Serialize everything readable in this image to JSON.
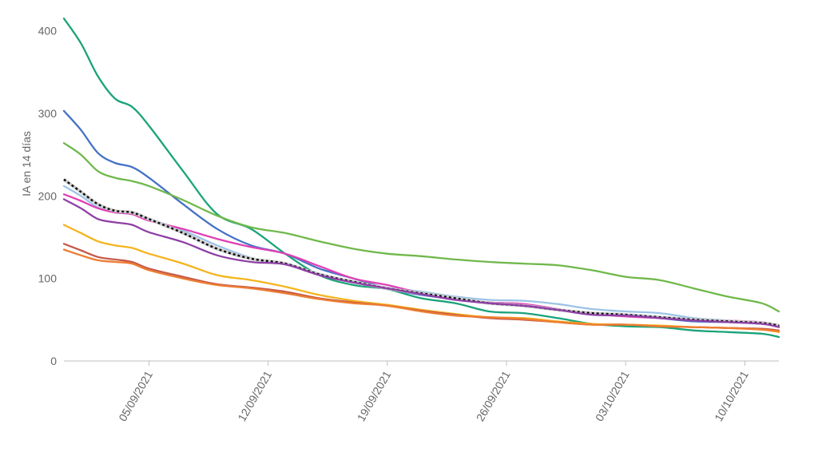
{
  "chart_data": {
    "type": "line",
    "ylabel": "IA en 14 días",
    "xlabel": "",
    "title": "",
    "grid": false,
    "legend": "none",
    "ylim": [
      0,
      420
    ],
    "xlim": [
      "2021-08-31",
      "2021-10-12"
    ],
    "yticks": [
      0,
      100,
      200,
      300,
      400
    ],
    "xticks": [
      {
        "date": "2021-09-05",
        "label": "05/09/2021"
      },
      {
        "date": "2021-09-12",
        "label": "12/09/2021"
      },
      {
        "date": "2021-09-19",
        "label": "19/09/2021"
      },
      {
        "date": "2021-09-26",
        "label": "26/09/2021"
      },
      {
        "date": "2021-10-03",
        "label": "03/10/2021"
      },
      {
        "date": "2021-10-10",
        "label": "10/10/2021"
      }
    ],
    "series": [
      {
        "color": "#1aa37a",
        "points": [
          [
            "2021-08-31",
            415
          ],
          [
            "2021-09-01",
            385
          ],
          [
            "2021-09-02",
            345
          ],
          [
            "2021-09-03",
            318
          ],
          [
            "2021-09-04",
            308
          ],
          [
            "2021-09-05",
            285
          ],
          [
            "2021-09-07",
            230
          ],
          [
            "2021-09-09",
            178
          ],
          [
            "2021-09-11",
            160
          ],
          [
            "2021-09-13",
            130
          ],
          [
            "2021-09-15",
            104
          ],
          [
            "2021-09-17",
            92
          ],
          [
            "2021-09-19",
            87
          ],
          [
            "2021-09-21",
            76
          ],
          [
            "2021-09-23",
            70
          ],
          [
            "2021-09-25",
            60
          ],
          [
            "2021-09-27",
            58
          ],
          [
            "2021-09-29",
            52
          ],
          [
            "2021-10-01",
            45
          ],
          [
            "2021-10-03",
            42
          ],
          [
            "2021-10-05",
            41
          ],
          [
            "2021-10-07",
            37
          ],
          [
            "2021-10-09",
            35
          ],
          [
            "2021-10-11",
            33
          ],
          [
            "2021-10-12",
            29
          ]
        ]
      },
      {
        "color": "#4472c4",
        "points": [
          [
            "2021-08-31",
            303
          ],
          [
            "2021-09-01",
            280
          ],
          [
            "2021-09-02",
            252
          ],
          [
            "2021-09-03",
            240
          ],
          [
            "2021-09-04",
            235
          ],
          [
            "2021-09-05",
            222
          ],
          [
            "2021-09-07",
            190
          ],
          [
            "2021-09-09",
            160
          ],
          [
            "2021-09-11",
            140
          ],
          [
            "2021-09-13",
            130
          ],
          [
            "2021-09-15",
            112
          ],
          [
            "2021-09-17",
            100
          ],
          [
            "2021-09-19",
            88
          ],
          [
            "2021-09-21",
            80
          ],
          [
            "2021-09-23",
            75
          ],
          [
            "2021-09-25",
            70
          ],
          [
            "2021-09-27",
            67
          ],
          [
            "2021-09-29",
            62
          ],
          [
            "2021-10-01",
            57
          ],
          [
            "2021-10-03",
            56
          ],
          [
            "2021-10-05",
            52
          ],
          [
            "2021-10-07",
            48
          ],
          [
            "2021-10-09",
            47
          ],
          [
            "2021-10-11",
            45
          ],
          [
            "2021-10-12",
            43
          ]
        ]
      },
      {
        "color": "#70b84b",
        "points": [
          [
            "2021-08-31",
            264
          ],
          [
            "2021-09-01",
            250
          ],
          [
            "2021-09-02",
            230
          ],
          [
            "2021-09-03",
            222
          ],
          [
            "2021-09-04",
            218
          ],
          [
            "2021-09-05",
            212
          ],
          [
            "2021-09-07",
            195
          ],
          [
            "2021-09-09",
            176
          ],
          [
            "2021-09-11",
            162
          ],
          [
            "2021-09-13",
            155
          ],
          [
            "2021-09-15",
            145
          ],
          [
            "2021-09-17",
            136
          ],
          [
            "2021-09-19",
            130
          ],
          [
            "2021-09-21",
            127
          ],
          [
            "2021-09-23",
            123
          ],
          [
            "2021-09-25",
            120
          ],
          [
            "2021-09-27",
            118
          ],
          [
            "2021-09-29",
            116
          ],
          [
            "2021-10-01",
            110
          ],
          [
            "2021-10-03",
            102
          ],
          [
            "2021-10-05",
            98
          ],
          [
            "2021-10-07",
            88
          ],
          [
            "2021-10-09",
            78
          ],
          [
            "2021-10-11",
            70
          ],
          [
            "2021-10-12",
            60
          ]
        ]
      },
      {
        "color": "#9dc3e6",
        "points": [
          [
            "2021-08-31",
            212
          ],
          [
            "2021-09-01",
            200
          ],
          [
            "2021-09-02",
            186
          ],
          [
            "2021-09-03",
            180
          ],
          [
            "2021-09-04",
            178
          ],
          [
            "2021-09-05",
            172
          ],
          [
            "2021-09-07",
            158
          ],
          [
            "2021-09-09",
            140
          ],
          [
            "2021-09-11",
            125
          ],
          [
            "2021-09-13",
            118
          ],
          [
            "2021-09-15",
            106
          ],
          [
            "2021-09-17",
            96
          ],
          [
            "2021-09-19",
            89
          ],
          [
            "2021-09-21",
            84
          ],
          [
            "2021-09-23",
            78
          ],
          [
            "2021-09-25",
            74
          ],
          [
            "2021-09-27",
            73
          ],
          [
            "2021-09-29",
            69
          ],
          [
            "2021-10-01",
            63
          ],
          [
            "2021-10-03",
            60
          ],
          [
            "2021-10-05",
            58
          ],
          [
            "2021-10-07",
            52
          ],
          [
            "2021-10-09",
            49
          ],
          [
            "2021-10-11",
            46
          ],
          [
            "2021-10-12",
            42
          ]
        ]
      },
      {
        "color": "#e13fb5",
        "points": [
          [
            "2021-08-31",
            202
          ],
          [
            "2021-09-01",
            194
          ],
          [
            "2021-09-02",
            185
          ],
          [
            "2021-09-03",
            180
          ],
          [
            "2021-09-04",
            178
          ],
          [
            "2021-09-05",
            170
          ],
          [
            "2021-09-07",
            160
          ],
          [
            "2021-09-09",
            148
          ],
          [
            "2021-09-11",
            138
          ],
          [
            "2021-09-13",
            130
          ],
          [
            "2021-09-15",
            115
          ],
          [
            "2021-09-17",
            100
          ],
          [
            "2021-09-19",
            92
          ],
          [
            "2021-09-21",
            82
          ],
          [
            "2021-09-23",
            75
          ],
          [
            "2021-09-25",
            71
          ],
          [
            "2021-09-27",
            69
          ],
          [
            "2021-09-29",
            63
          ],
          [
            "2021-10-01",
            57
          ],
          [
            "2021-10-03",
            54
          ],
          [
            "2021-10-05",
            52
          ],
          [
            "2021-10-07",
            50
          ],
          [
            "2021-10-09",
            49
          ],
          [
            "2021-10-11",
            47
          ],
          [
            "2021-10-12",
            43
          ]
        ]
      },
      {
        "color": "#111111",
        "dashed": true,
        "points": [
          [
            "2021-08-31",
            220
          ],
          [
            "2021-09-01",
            205
          ],
          [
            "2021-09-02",
            190
          ],
          [
            "2021-09-03",
            182
          ],
          [
            "2021-09-04",
            180
          ],
          [
            "2021-09-05",
            172
          ],
          [
            "2021-09-07",
            155
          ],
          [
            "2021-09-09",
            136
          ],
          [
            "2021-09-11",
            124
          ],
          [
            "2021-09-13",
            118
          ],
          [
            "2021-09-15",
            105
          ],
          [
            "2021-09-17",
            96
          ],
          [
            "2021-09-19",
            88
          ],
          [
            "2021-09-21",
            82
          ],
          [
            "2021-09-23",
            76
          ],
          [
            "2021-09-25",
            70
          ],
          [
            "2021-09-27",
            67
          ],
          [
            "2021-09-29",
            62
          ],
          [
            "2021-10-01",
            58
          ],
          [
            "2021-10-03",
            56
          ],
          [
            "2021-10-05",
            53
          ],
          [
            "2021-10-07",
            50
          ],
          [
            "2021-10-09",
            48
          ],
          [
            "2021-10-11",
            46
          ],
          [
            "2021-10-12",
            43
          ]
        ]
      },
      {
        "color": "#8e3fa6",
        "points": [
          [
            "2021-08-31",
            196
          ],
          [
            "2021-09-01",
            185
          ],
          [
            "2021-09-02",
            172
          ],
          [
            "2021-09-03",
            168
          ],
          [
            "2021-09-04",
            165
          ],
          [
            "2021-09-05",
            156
          ],
          [
            "2021-09-07",
            144
          ],
          [
            "2021-09-09",
            128
          ],
          [
            "2021-09-11",
            120
          ],
          [
            "2021-09-13",
            117
          ],
          [
            "2021-09-15",
            104
          ],
          [
            "2021-09-17",
            95
          ],
          [
            "2021-09-19",
            88
          ],
          [
            "2021-09-21",
            81
          ],
          [
            "2021-09-23",
            74
          ],
          [
            "2021-09-25",
            70
          ],
          [
            "2021-09-27",
            67
          ],
          [
            "2021-09-29",
            62
          ],
          [
            "2021-10-01",
            56
          ],
          [
            "2021-10-03",
            55
          ],
          [
            "2021-10-05",
            52
          ],
          [
            "2021-10-07",
            49
          ],
          [
            "2021-10-09",
            47
          ],
          [
            "2021-10-11",
            45
          ],
          [
            "2021-10-12",
            41
          ]
        ]
      },
      {
        "color": "#f5b41e",
        "points": [
          [
            "2021-08-31",
            165
          ],
          [
            "2021-09-01",
            155
          ],
          [
            "2021-09-02",
            145
          ],
          [
            "2021-09-03",
            140
          ],
          [
            "2021-09-04",
            137
          ],
          [
            "2021-09-05",
            130
          ],
          [
            "2021-09-07",
            118
          ],
          [
            "2021-09-09",
            104
          ],
          [
            "2021-09-11",
            98
          ],
          [
            "2021-09-13",
            90
          ],
          [
            "2021-09-15",
            80
          ],
          [
            "2021-09-17",
            73
          ],
          [
            "2021-09-19",
            68
          ],
          [
            "2021-09-21",
            62
          ],
          [
            "2021-09-23",
            57
          ],
          [
            "2021-09-25",
            53
          ],
          [
            "2021-09-27",
            52
          ],
          [
            "2021-09-29",
            48
          ],
          [
            "2021-10-01",
            45
          ],
          [
            "2021-10-03",
            44
          ],
          [
            "2021-10-05",
            43
          ],
          [
            "2021-10-07",
            41
          ],
          [
            "2021-10-09",
            40
          ],
          [
            "2021-10-11",
            38
          ],
          [
            "2021-10-12",
            35
          ]
        ]
      },
      {
        "color": "#c55a4a",
        "points": [
          [
            "2021-08-31",
            142
          ],
          [
            "2021-09-01",
            134
          ],
          [
            "2021-09-02",
            126
          ],
          [
            "2021-09-03",
            123
          ],
          [
            "2021-09-04",
            120
          ],
          [
            "2021-09-05",
            112
          ],
          [
            "2021-09-07",
            102
          ],
          [
            "2021-09-09",
            93
          ],
          [
            "2021-09-11",
            89
          ],
          [
            "2021-09-13",
            84
          ],
          [
            "2021-09-15",
            76
          ],
          [
            "2021-09-17",
            71
          ],
          [
            "2021-09-19",
            67
          ],
          [
            "2021-09-21",
            61
          ],
          [
            "2021-09-23",
            56
          ],
          [
            "2021-09-25",
            52
          ],
          [
            "2021-09-27",
            50
          ],
          [
            "2021-09-29",
            47
          ],
          [
            "2021-10-01",
            44
          ],
          [
            "2021-10-03",
            44
          ],
          [
            "2021-10-05",
            42
          ],
          [
            "2021-10-07",
            41
          ],
          [
            "2021-10-09",
            40
          ],
          [
            "2021-10-11",
            39
          ],
          [
            "2021-10-12",
            37
          ]
        ]
      },
      {
        "color": "#ed7d31",
        "points": [
          [
            "2021-08-31",
            135
          ],
          [
            "2021-09-01",
            128
          ],
          [
            "2021-09-02",
            122
          ],
          [
            "2021-09-03",
            120
          ],
          [
            "2021-09-04",
            118
          ],
          [
            "2021-09-05",
            110
          ],
          [
            "2021-09-07",
            100
          ],
          [
            "2021-09-09",
            92
          ],
          [
            "2021-09-11",
            88
          ],
          [
            "2021-09-13",
            82
          ],
          [
            "2021-09-15",
            75
          ],
          [
            "2021-09-17",
            70
          ],
          [
            "2021-09-19",
            67
          ],
          [
            "2021-09-21",
            60
          ],
          [
            "2021-09-23",
            55
          ],
          [
            "2021-09-25",
            53
          ],
          [
            "2021-09-27",
            51
          ],
          [
            "2021-09-29",
            47
          ],
          [
            "2021-10-01",
            44
          ],
          [
            "2021-10-03",
            44
          ],
          [
            "2021-10-05",
            42
          ],
          [
            "2021-10-07",
            41
          ],
          [
            "2021-10-09",
            40
          ],
          [
            "2021-10-11",
            38
          ],
          [
            "2021-10-12",
            36
          ]
        ]
      }
    ]
  }
}
